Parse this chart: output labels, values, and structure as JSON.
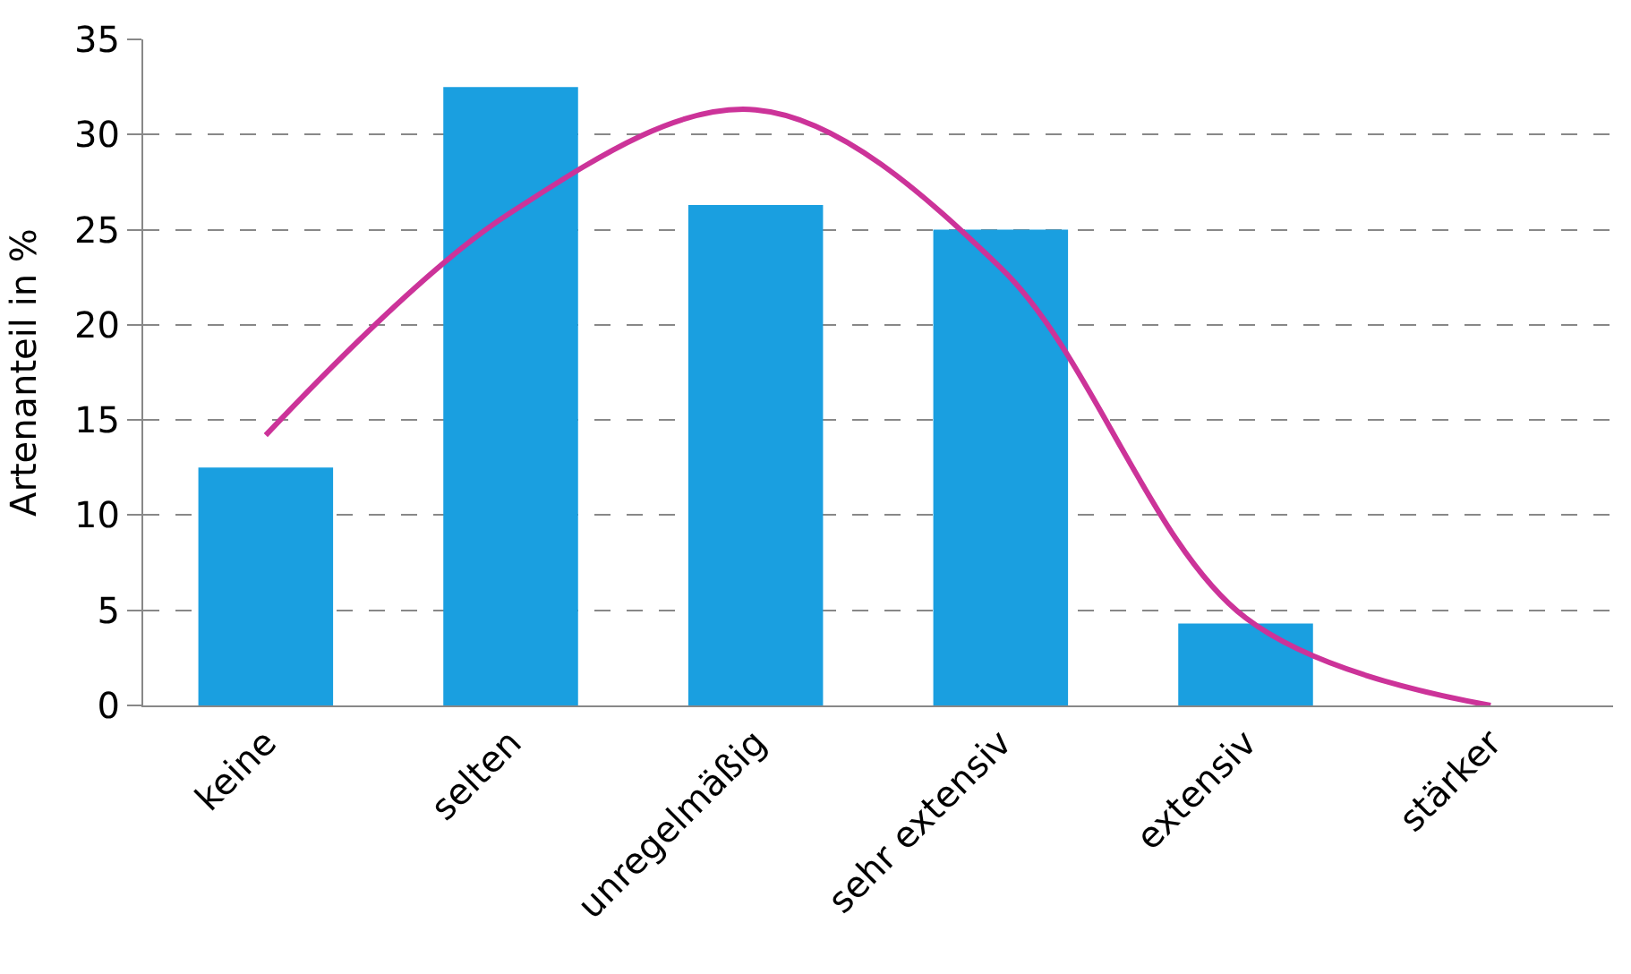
{
  "chart_data": {
    "type": "bar",
    "ylabel": "Artenanteil in %",
    "categories": [
      "keine",
      "selten",
      "unregelmäßig",
      "sehr extensiv",
      "extensiv",
      "stärker"
    ],
    "series": [
      {
        "color": "#1a9fe0",
        "values": [
          12.5,
          32.5,
          26.3,
          25.0,
          4.3,
          0
        ]
      },
      {
        "type": "line",
        "color": "#cc3399",
        "values": [
          14.2,
          25.9,
          31.3,
          23.0,
          4.6,
          0
        ]
      }
    ],
    "ylim": [
      0,
      35
    ],
    "yticks": [
      0,
      5,
      10,
      15,
      20,
      25,
      30,
      35
    ],
    "grid": "y",
    "marker": "none"
  }
}
